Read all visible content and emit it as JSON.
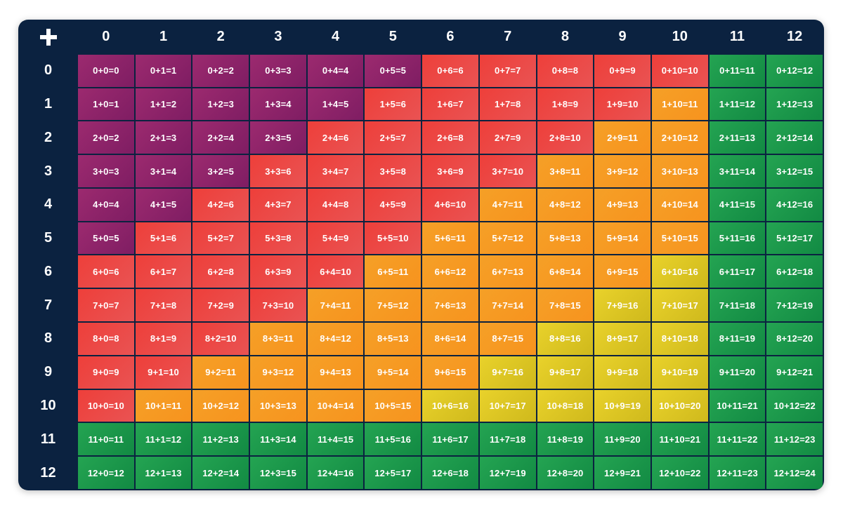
{
  "table": {
    "operator": "+",
    "columns": [
      "0",
      "1",
      "2",
      "3",
      "4",
      "5",
      "6",
      "7",
      "8",
      "9",
      "10",
      "11",
      "12"
    ],
    "rows": [
      "0",
      "1",
      "2",
      "3",
      "4",
      "5",
      "6",
      "7",
      "8",
      "9",
      "10",
      "11",
      "12"
    ],
    "palette": {
      "header_bg": "#0b2240",
      "purple": "#8e2468",
      "red": "#ec4545",
      "orange": "#f69a24",
      "yellow": "#dcc624",
      "green": "#1b9a4b"
    },
    "cells": [
      [
        "0+0=0",
        "0+1=1",
        "0+2=2",
        "0+3=3",
        "0+4=4",
        "0+5=5",
        "0+6=6",
        "0+7=7",
        "0+8=8",
        "0+9=9",
        "0+10=10",
        "0+11=11",
        "0+12=12"
      ],
      [
        "1+0=1",
        "1+1=2",
        "1+2=3",
        "1+3=4",
        "1+4=5",
        "1+5=6",
        "1+6=7",
        "1+7=8",
        "1+8=9",
        "1+9=10",
        "1+10=11",
        "1+11=12",
        "1+12=13"
      ],
      [
        "2+0=2",
        "2+1=3",
        "2+2=4",
        "2+3=5",
        "2+4=6",
        "2+5=7",
        "2+6=8",
        "2+7=9",
        "2+8=10",
        "2+9=11",
        "2+10=12",
        "2+11=13",
        "2+12=14"
      ],
      [
        "3+0=3",
        "3+1=4",
        "3+2=5",
        "3+3=6",
        "3+4=7",
        "3+5=8",
        "3+6=9",
        "3+7=10",
        "3+8=11",
        "3+9=12",
        "3+10=13",
        "3+11=14",
        "3+12=15"
      ],
      [
        "4+0=4",
        "4+1=5",
        "4+2=6",
        "4+3=7",
        "4+4=8",
        "4+5=9",
        "4+6=10",
        "4+7=11",
        "4+8=12",
        "4+9=13",
        "4+10=14",
        "4+11=15",
        "4+12=16"
      ],
      [
        "5+0=5",
        "5+1=6",
        "5+2=7",
        "5+3=8",
        "5+4=9",
        "5+5=10",
        "5+6=11",
        "5+7=12",
        "5+8=13",
        "5+9=14",
        "5+10=15",
        "5+11=16",
        "5+12=17"
      ],
      [
        "6+0=6",
        "6+1=7",
        "6+2=8",
        "6+3=9",
        "6+4=10",
        "6+5=11",
        "6+6=12",
        "6+7=13",
        "6+8=14",
        "6+9=15",
        "6+10=16",
        "6+11=17",
        "6+12=18"
      ],
      [
        "7+0=7",
        "7+1=8",
        "7+2=9",
        "7+3=10",
        "7+4=11",
        "7+5=12",
        "7+6=13",
        "7+7=14",
        "7+8=15",
        "7+9=16",
        "7+10=17",
        "7+11=18",
        "7+12=19"
      ],
      [
        "8+0=8",
        "8+1=9",
        "8+2=10",
        "8+3=11",
        "8+4=12",
        "8+5=13",
        "8+6=14",
        "8+7=15",
        "8+8=16",
        "8+9=17",
        "8+10=18",
        "8+11=19",
        "8+12=20"
      ],
      [
        "9+0=9",
        "9+1=10",
        "9+2=11",
        "9+3=12",
        "9+4=13",
        "9+5=14",
        "9+6=15",
        "9+7=16",
        "9+8=17",
        "9+9=18",
        "9+10=19",
        "9+11=20",
        "9+12=21"
      ],
      [
        "10+0=10",
        "10+1=11",
        "10+2=12",
        "10+3=13",
        "10+4=14",
        "10+5=15",
        "10+6=16",
        "10+7=17",
        "10+8=18",
        "10+9=19",
        "10+10=20",
        "10+11=21",
        "10+12=22"
      ],
      [
        "11+0=11",
        "11+1=12",
        "11+2=13",
        "11+3=14",
        "11+4=15",
        "11+5=16",
        "11+6=17",
        "11+7=18",
        "11+8=19",
        "11+9=20",
        "11+10=21",
        "11+11=22",
        "11+12=23"
      ],
      [
        "12+0=12",
        "12+1=13",
        "12+2=14",
        "12+3=15",
        "12+4=16",
        "12+5=17",
        "12+6=18",
        "12+7=19",
        "12+8=20",
        "12+9=21",
        "12+10=22",
        "12+11=23",
        "12+12=24"
      ]
    ]
  }
}
